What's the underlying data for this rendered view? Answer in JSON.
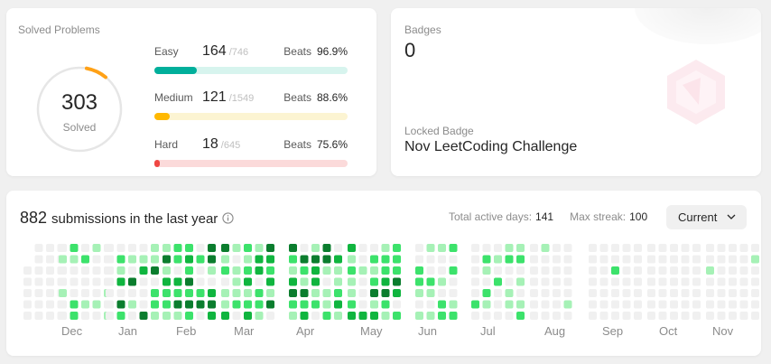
{
  "solved": {
    "title": "Solved Problems",
    "total": "303",
    "total_label": "Solved",
    "difficulties": [
      {
        "label": "Easy",
        "count": "164",
        "total": "/746",
        "beats_label": "Beats",
        "beats": "96.9%",
        "fraction": 0.22,
        "color": "#00af9b",
        "track": "#d7f4ee"
      },
      {
        "label": "Medium",
        "count": "121",
        "total": "/1549",
        "beats_label": "Beats",
        "beats": "88.6%",
        "fraction": 0.078,
        "color": "#ffb800",
        "track": "#fcf4d2"
      },
      {
        "label": "Hard",
        "count": "18",
        "total": "/645",
        "beats_label": "Beats",
        "beats": "75.6%",
        "fraction": 0.028,
        "color": "#ef4743",
        "track": "#fbdada"
      }
    ]
  },
  "badges": {
    "title": "Badges",
    "count": "0",
    "locked_title": "Locked Badge",
    "locked_name": "Nov LeetCoding Challenge"
  },
  "submissions": {
    "count": "882",
    "text": "submissions in the last year",
    "active_days_label": "Total active days:",
    "active_days": "141",
    "max_streak_label": "Max streak:",
    "max_streak": "100",
    "period": "Current",
    "months": [
      "Dec",
      "Jan",
      "Feb",
      "Mar",
      "Apr",
      "May",
      "Jun",
      "Jul",
      "Aug",
      "Sep",
      "Oct",
      "Nov"
    ],
    "colors": {
      "empty": "#f0f0f0",
      "l1": "#a6f1b6",
      "l2": "#3ce26b",
      "l3": "#10b53f",
      "l4": "#0b7d2e"
    }
  }
}
